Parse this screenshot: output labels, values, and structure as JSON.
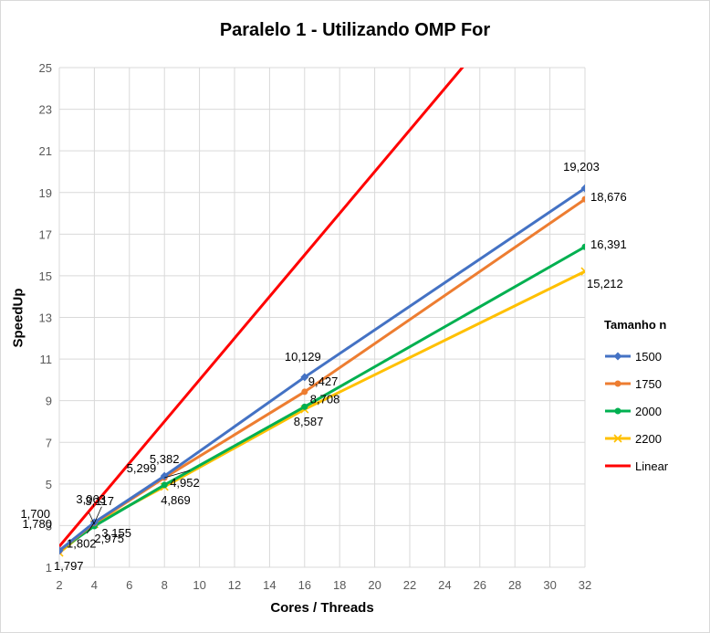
{
  "chart_data": {
    "type": "line",
    "title": "Paralelo 1 - Utilizando OMP For",
    "xlabel": "Cores / Threads",
    "ylabel": "SpeedUp",
    "xlim": [
      2,
      32
    ],
    "ylim": [
      1,
      25
    ],
    "xticks": [
      2,
      4,
      6,
      8,
      10,
      12,
      14,
      16,
      18,
      20,
      22,
      24,
      26,
      28,
      30,
      32
    ],
    "yticks": [
      1,
      3,
      5,
      7,
      9,
      11,
      13,
      15,
      17,
      19,
      21,
      23,
      25
    ],
    "grid": true,
    "legend_title": "Tamanho n",
    "legend_position": "right",
    "series": [
      {
        "name": "1500",
        "color": "#4472C4",
        "marker": "diamond",
        "x": [
          2,
          4,
          8,
          16,
          32
        ],
        "y": [
          1.802,
          3.155,
          5.382,
          10.129,
          19.203
        ],
        "labels": [
          "1,802",
          "3,155",
          "5,382",
          "10,129",
          "19,203"
        ]
      },
      {
        "name": "1750",
        "color": "#ED7D31",
        "marker": "circle",
        "x": [
          2,
          4,
          8,
          16,
          32
        ],
        "y": [
          1.78,
          3.117,
          5.299,
          9.427,
          18.676
        ],
        "labels": [
          "1,780",
          "3,117",
          "5,299",
          "9,427",
          "18,676"
        ]
      },
      {
        "name": "2000",
        "color": "#00B050",
        "marker": "circle",
        "x": [
          2,
          4,
          8,
          16,
          32
        ],
        "y": [
          1.797,
          2.975,
          4.952,
          8.708,
          16.391
        ],
        "labels": [
          "1,797",
          "2,975",
          "4,952",
          "8,708",
          "16,391"
        ]
      },
      {
        "name": "2200",
        "color": "#FFC000",
        "marker": "x",
        "x": [
          2,
          4,
          8,
          16,
          32
        ],
        "y": [
          1.7,
          3.063,
          4.869,
          8.587,
          15.212
        ],
        "labels": [
          "1,700",
          "3,063",
          "4,869",
          "8,587",
          "15,212"
        ]
      },
      {
        "name": "Linear",
        "color": "#FF0000",
        "marker": "none",
        "x": [
          2,
          4,
          8,
          16,
          32
        ],
        "y": [
          2,
          4,
          8,
          16,
          32
        ],
        "labels": []
      }
    ]
  }
}
